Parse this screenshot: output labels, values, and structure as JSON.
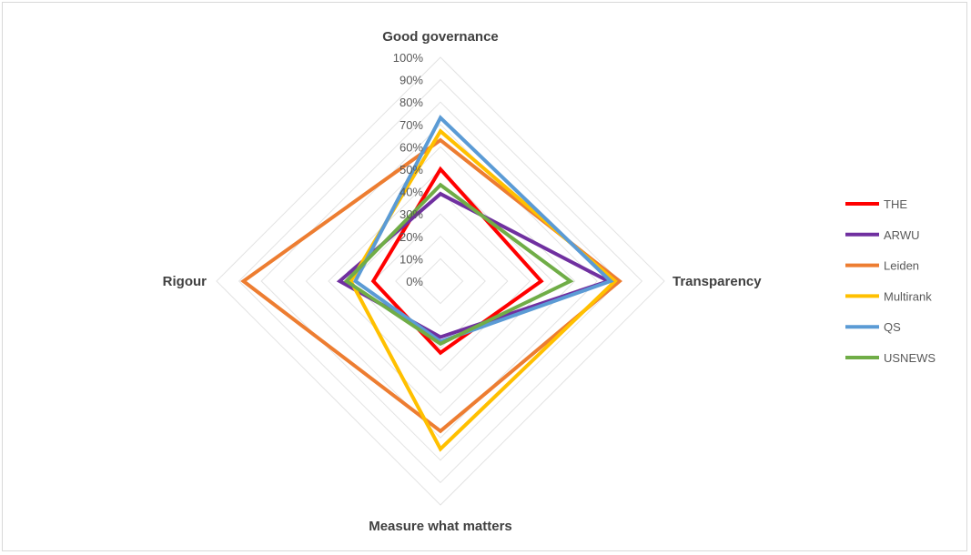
{
  "chart_data": {
    "type": "radar",
    "axes": [
      "Good governance",
      "Transparency",
      "Measure what matters",
      "Rigour"
    ],
    "tick_labels": [
      "0%",
      "10%",
      "20%",
      "30%",
      "40%",
      "50%",
      "60%",
      "70%",
      "80%",
      "90%",
      "100%"
    ],
    "range": [
      0,
      100
    ],
    "series": [
      {
        "name": "THE",
        "color": "#ff0000",
        "values": [
          50,
          45,
          32,
          30
        ]
      },
      {
        "name": "ARWU",
        "color": "#7030a0",
        "values": [
          39,
          75,
          25,
          45
        ]
      },
      {
        "name": "Leiden",
        "color": "#ed7d31",
        "values": [
          63,
          80,
          67,
          88
        ]
      },
      {
        "name": "Multirank",
        "color": "#ffc000",
        "values": [
          67,
          78,
          75,
          40
        ]
      },
      {
        "name": "QS",
        "color": "#5b9bd5",
        "values": [
          73,
          76,
          27,
          38
        ]
      },
      {
        "name": "USNEWS",
        "color": "#70ad47",
        "values": [
          43,
          58,
          28,
          42
        ]
      }
    ],
    "legend_position": "right",
    "grid": true
  }
}
